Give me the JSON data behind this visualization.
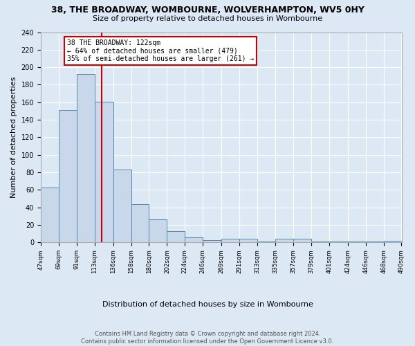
{
  "title": "38, THE BROADWAY, WOMBOURNE, WOLVERHAMPTON, WV5 0HY",
  "subtitle": "Size of property relative to detached houses in Wombourne",
  "xlabel": "Distribution of detached houses by size in Wombourne",
  "ylabel": "Number of detached properties",
  "footer_line1": "Contains HM Land Registry data © Crown copyright and database right 2024.",
  "footer_line2": "Contains public sector information licensed under the Open Government Licence v3.0.",
  "bar_edges": [
    47,
    69,
    91,
    113,
    136,
    158,
    180,
    202,
    224,
    246,
    269,
    291,
    313,
    335,
    357,
    379,
    401,
    424,
    446,
    468,
    490
  ],
  "bar_heights": [
    63,
    151,
    192,
    161,
    83,
    44,
    26,
    13,
    6,
    3,
    4,
    4,
    1,
    4,
    4,
    1,
    1,
    1,
    1,
    2
  ],
  "bar_color": "#c8d8ea",
  "bar_edge_color": "#5588aa",
  "red_line_x": 122,
  "annotation_title": "38 THE BROADWAY: 122sqm",
  "annotation_line1": "← 64% of detached houses are smaller (479)",
  "annotation_line2": "35% of semi-detached houses are larger (261) →",
  "annotation_box_color": "#ffffff",
  "annotation_box_edge": "#cc0000",
  "red_line_color": "#cc0000",
  "ylim": [
    0,
    240
  ],
  "yticks": [
    0,
    20,
    40,
    60,
    80,
    100,
    120,
    140,
    160,
    180,
    200,
    220,
    240
  ],
  "bg_color": "#dce8f4",
  "plot_bg_color": "#dce8f4",
  "tick_labels": [
    "47sqm",
    "69sqm",
    "91sqm",
    "113sqm",
    "136sqm",
    "158sqm",
    "180sqm",
    "202sqm",
    "224sqm",
    "246sqm",
    "269sqm",
    "291sqm",
    "313sqm",
    "335sqm",
    "357sqm",
    "379sqm",
    "401sqm",
    "424sqm",
    "446sqm",
    "468sqm",
    "490sqm"
  ]
}
